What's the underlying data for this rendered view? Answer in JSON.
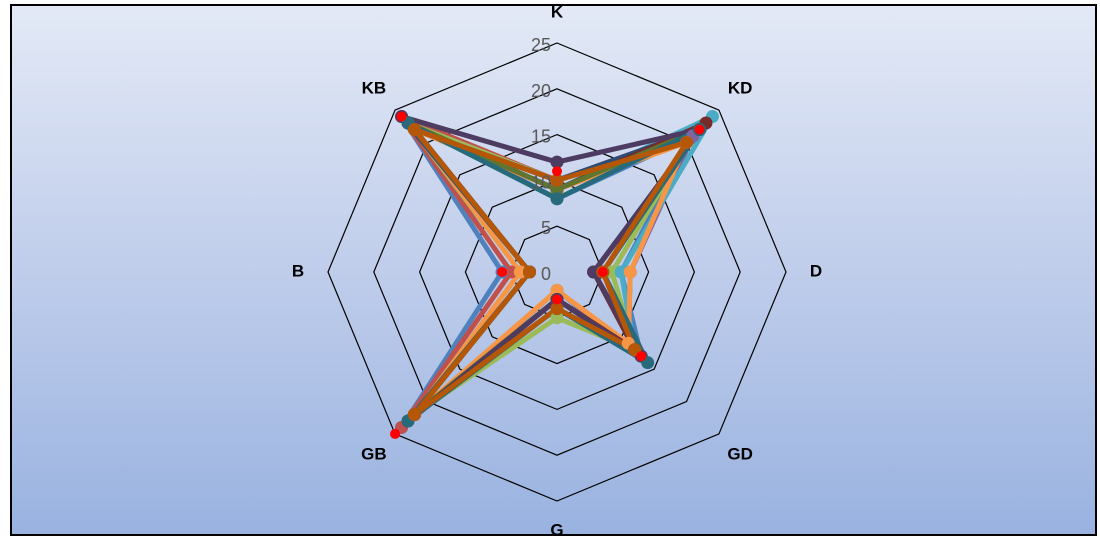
{
  "chart_data": {
    "type": "radar",
    "title": "",
    "axes": [
      "K",
      "KD",
      "D",
      "GD",
      "G",
      "GB",
      "B",
      "KB"
    ],
    "ticks": [
      "0",
      "5",
      "10",
      "15",
      "20",
      "25"
    ],
    "rmin": 0,
    "rmax": 25,
    "grid": true,
    "legend": "none",
    "series": [
      {
        "color": "#4f81bd",
        "values": [
          8,
          21,
          7,
          13,
          2,
          24,
          6,
          24
        ]
      },
      {
        "color": "#c0504d",
        "values": [
          10,
          22,
          5,
          12,
          3,
          24,
          5,
          24
        ]
      },
      {
        "color": "#9bbb59",
        "values": [
          10,
          21,
          6,
          12,
          5,
          22,
          4,
          23
        ]
      },
      {
        "color": "#8064a2",
        "values": [
          10,
          21,
          8,
          11,
          3,
          22,
          3,
          22
        ]
      },
      {
        "color": "#4bacc6",
        "values": [
          9,
          24,
          7,
          12,
          4,
          22,
          3,
          22
        ]
      },
      {
        "color": "#f79646",
        "values": [
          9,
          20,
          8,
          11,
          2,
          22,
          4,
          22
        ]
      },
      {
        "color": "#2c4d75",
        "values": [
          10,
          22,
          4,
          12,
          3,
          22,
          3,
          22
        ]
      },
      {
        "color": "#772c2a",
        "values": [
          9,
          23,
          4,
          12,
          3,
          22,
          3,
          23
        ]
      },
      {
        "color": "#5f7530",
        "values": [
          9,
          22,
          5,
          13,
          3,
          22,
          3,
          23
        ]
      },
      {
        "color": "#4d3b62",
        "values": [
          12,
          22,
          4,
          13,
          3,
          23,
          3,
          24
        ]
      },
      {
        "color": "#276a7c",
        "values": [
          8,
          22,
          5,
          14,
          4,
          23,
          3,
          23
        ]
      },
      {
        "color": "#b65708",
        "values": [
          10,
          20,
          5,
          12,
          4,
          22,
          3,
          22
        ]
      },
      {
        "color": "#ff0000",
        "values": [
          11,
          22,
          5,
          13,
          3,
          25,
          6,
          24
        ],
        "markerOnly": true
      }
    ]
  }
}
